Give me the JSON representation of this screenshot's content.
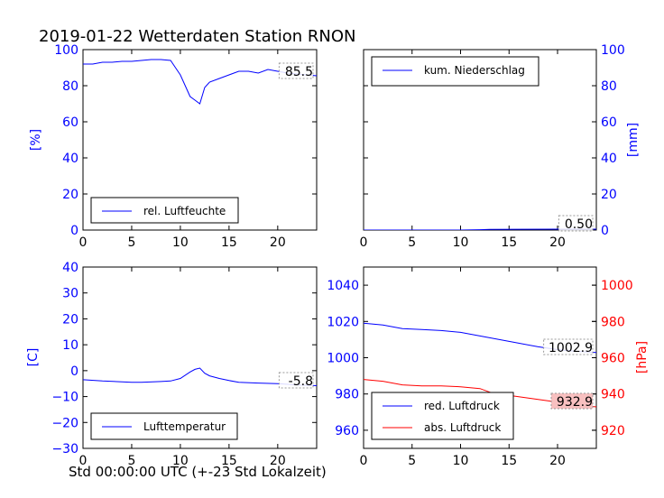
{
  "title": "2019-01-22 Wetterdaten Station RNON",
  "x_axis_label": "Std 00:00:00 UTC (+-23 Std Lokalzeit)",
  "colors": {
    "blue": "#0000ff",
    "red": "#ff0000",
    "label_box_red": "#f8c0c0"
  },
  "chart_data": [
    {
      "type": "line",
      "ylabel": "[%]",
      "xlim": [
        0,
        24
      ],
      "ylim": [
        0,
        100
      ],
      "xticks": [
        "0",
        "5",
        "10",
        "15",
        "20"
      ],
      "yticks": [
        "0",
        "20",
        "40",
        "60",
        "80",
        "100"
      ],
      "legend": "bottom-left",
      "last_value_label": "85.5",
      "series": [
        {
          "name": "rel. Luftfeuchte",
          "color": "#0000ff",
          "x": [
            0,
            1,
            2,
            3,
            4,
            5,
            6,
            7,
            8,
            9,
            9.5,
            10,
            10.5,
            11,
            11.5,
            12,
            12.5,
            13,
            14,
            15,
            16,
            17,
            18,
            19,
            20,
            21,
            22,
            23,
            24
          ],
          "y": [
            92,
            92,
            93,
            93,
            93.5,
            93.5,
            94,
            94.5,
            94.5,
            94,
            90,
            86,
            80,
            74,
            72,
            70,
            79,
            82,
            84,
            86,
            88,
            88,
            87,
            89,
            88,
            87,
            86.5,
            86,
            85.5
          ]
        }
      ]
    },
    {
      "type": "line",
      "ylabel": "[mm]",
      "xlim": [
        0,
        24
      ],
      "ylim": [
        0,
        100
      ],
      "xticks": [
        "0",
        "5",
        "10",
        "15",
        "20"
      ],
      "yticks": [
        "0",
        "20",
        "40",
        "60",
        "80",
        "100"
      ],
      "legend": "top-left",
      "last_value_label": "0.50",
      "series": [
        {
          "name": "kum. Niederschlag",
          "color": "#0000ff",
          "x": [
            0,
            5,
            10,
            12,
            13,
            16,
            20,
            24
          ],
          "y": [
            0,
            0,
            0,
            0.2,
            0.4,
            0.45,
            0.5,
            0.5
          ]
        }
      ]
    },
    {
      "type": "line",
      "ylabel": "[C]",
      "xlim": [
        0,
        24
      ],
      "ylim": [
        -30,
        40
      ],
      "xticks": [
        "0",
        "5",
        "10",
        "15",
        "20"
      ],
      "yticks": [
        "−30",
        "−20",
        "−10",
        "0",
        "10",
        "20",
        "30",
        "40"
      ],
      "legend": "bottom-left",
      "last_value_label": "-5.8",
      "series": [
        {
          "name": "Lufttemperatur",
          "color": "#0000ff",
          "x": [
            0,
            2,
            4,
            5,
            6,
            8,
            9,
            10,
            11,
            11.5,
            12,
            12.5,
            13,
            14,
            15,
            16,
            18,
            20,
            22,
            24
          ],
          "y": [
            -3.5,
            -4,
            -4.3,
            -4.5,
            -4.5,
            -4.2,
            -4,
            -3,
            -0.5,
            0.5,
            1,
            -1,
            -2,
            -3,
            -3.8,
            -4.5,
            -4.8,
            -5,
            -5.5,
            -5.8
          ]
        }
      ]
    },
    {
      "type": "line",
      "xlim": [
        0,
        24
      ],
      "ylim": [
        950,
        1050
      ],
      "ylim_right": [
        910,
        1010
      ],
      "ylabel_right": "[hPa]",
      "xticks": [
        "0",
        "5",
        "10",
        "15",
        "20"
      ],
      "yticks": [
        "960",
        "980",
        "1000",
        "1020",
        "1040"
      ],
      "yticks_right": [
        "920",
        "940",
        "960",
        "980",
        "1000"
      ],
      "legend": "bottom-left",
      "last_value_label": "1002.9",
      "last_value_label_right": "932.9",
      "series": [
        {
          "name": "red. Luftdruck",
          "color": "#0000ff",
          "axis": "left",
          "x": [
            0,
            2,
            4,
            6,
            8,
            10,
            12,
            14,
            16,
            18,
            20,
            22,
            24
          ],
          "y": [
            1019,
            1018,
            1016,
            1015.5,
            1015,
            1014,
            1012,
            1010,
            1008,
            1006,
            1004.5,
            1003.5,
            1002.9
          ]
        },
        {
          "name": "abs. Luftdruck",
          "color": "#ff0000",
          "axis": "right",
          "x": [
            0,
            2,
            4,
            6,
            8,
            10,
            11,
            12,
            13,
            14,
            16,
            18,
            20,
            22,
            24
          ],
          "y": [
            948,
            947,
            945,
            944.5,
            944.5,
            944,
            943.5,
            943,
            941,
            940,
            938.5,
            937,
            935.5,
            934,
            932.9
          ]
        }
      ]
    }
  ]
}
